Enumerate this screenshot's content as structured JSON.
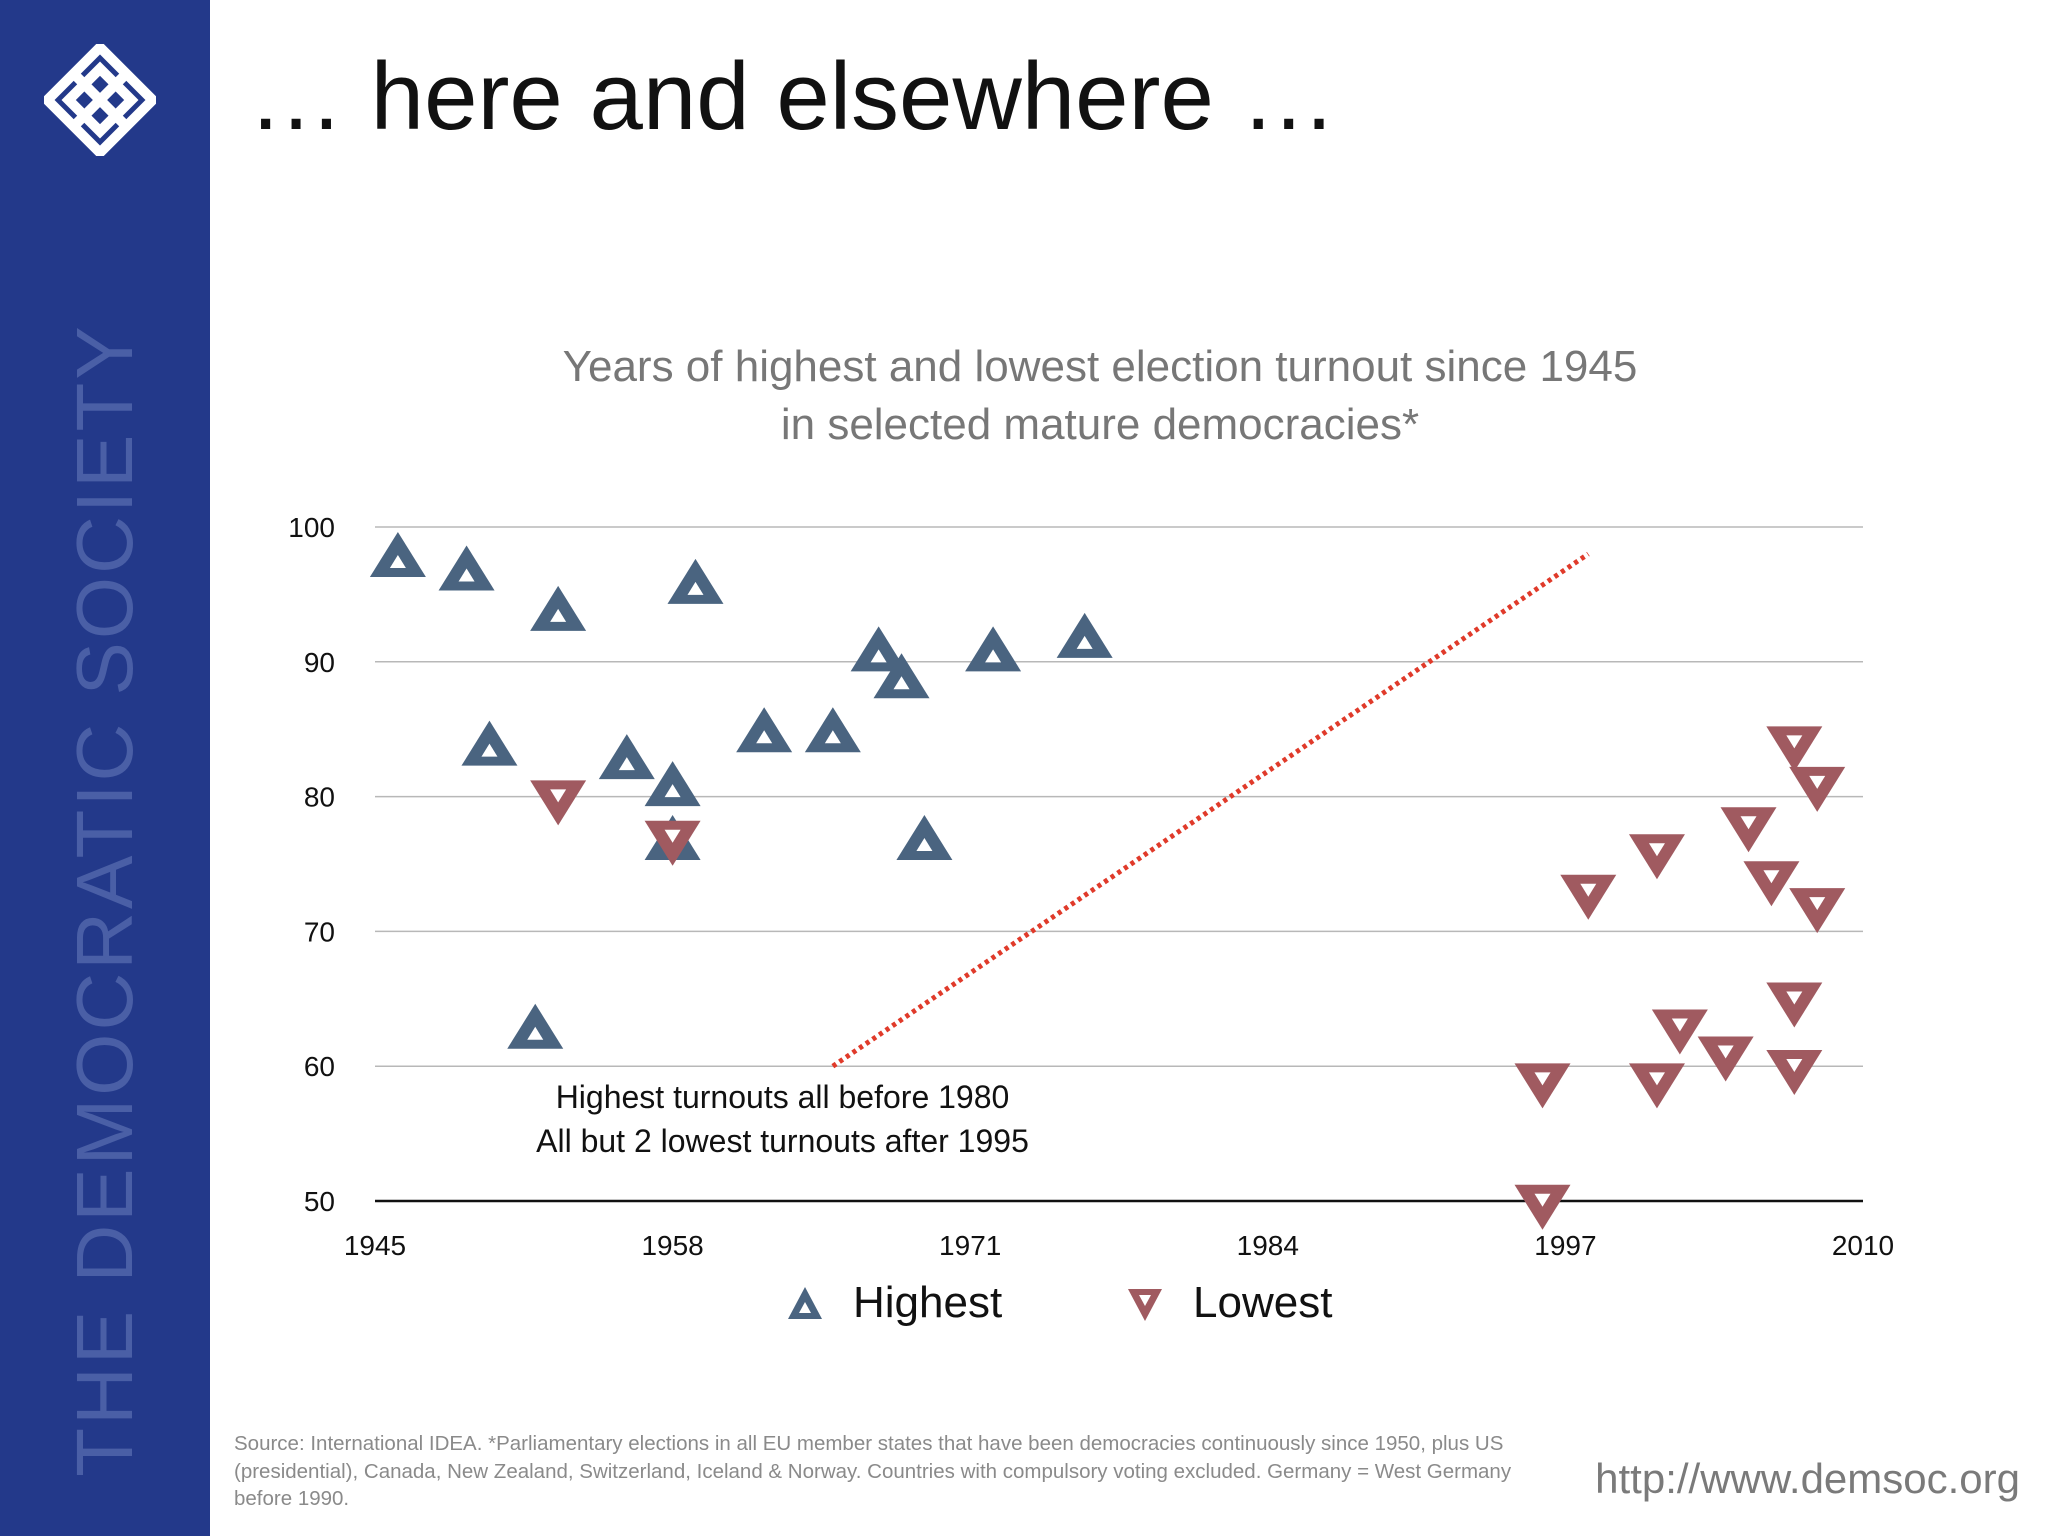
{
  "brand": {
    "name": "THE DEMOCRATIC SOCIETY",
    "sidebar_color": "#23398a"
  },
  "slide": {
    "title": "… here and elsewhere …"
  },
  "chart_data": {
    "type": "scatter",
    "title": "Years of highest and lowest election turnout since 1945",
    "subtitle": "in selected mature democracies*",
    "xlabel": "",
    "ylabel": "",
    "xlim": [
      1945,
      2010
    ],
    "ylim": [
      50,
      100
    ],
    "x_ticks": [
      1945,
      1958,
      1971,
      1984,
      1997,
      2010
    ],
    "y_ticks": [
      50,
      60,
      70,
      80,
      90,
      100
    ],
    "grid": true,
    "legend_position": "bottom",
    "series": [
      {
        "name": "Highest",
        "marker": "triangle-up",
        "color": "#4a6480",
        "points": [
          {
            "x": 1946,
            "y": 98
          },
          {
            "x": 1949,
            "y": 97
          },
          {
            "x": 1953,
            "y": 94
          },
          {
            "x": 1959,
            "y": 96
          },
          {
            "x": 1950,
            "y": 84
          },
          {
            "x": 1956,
            "y": 83
          },
          {
            "x": 1958,
            "y": 81
          },
          {
            "x": 1958,
            "y": 77
          },
          {
            "x": 1952,
            "y": 63
          },
          {
            "x": 1962,
            "y": 85
          },
          {
            "x": 1965,
            "y": 85
          },
          {
            "x": 1967,
            "y": 91
          },
          {
            "x": 1968,
            "y": 89
          },
          {
            "x": 1969,
            "y": 77
          },
          {
            "x": 1972,
            "y": 91
          },
          {
            "x": 1976,
            "y": 92
          }
        ]
      },
      {
        "name": "Lowest",
        "marker": "triangle-down",
        "color": "#a05a60",
        "points": [
          {
            "x": 1953,
            "y": 79.5
          },
          {
            "x": 1958,
            "y": 76.5
          },
          {
            "x": 1996,
            "y": 49.5
          },
          {
            "x": 1996,
            "y": 58.5
          },
          {
            "x": 1998,
            "y": 72.5
          },
          {
            "x": 2001,
            "y": 75.5
          },
          {
            "x": 2001,
            "y": 58.5
          },
          {
            "x": 2002,
            "y": 62.5
          },
          {
            "x": 2004,
            "y": 60.5
          },
          {
            "x": 2005,
            "y": 77.5
          },
          {
            "x": 2006,
            "y": 73.5
          },
          {
            "x": 2007,
            "y": 83.5
          },
          {
            "x": 2007,
            "y": 64.5
          },
          {
            "x": 2007,
            "y": 59.5
          },
          {
            "x": 2008,
            "y": 80.5
          },
          {
            "x": 2008,
            "y": 71.5
          }
        ]
      }
    ],
    "divider_line": {
      "style": "dotted",
      "color": "#e03a2a",
      "from": [
        1965,
        60
      ],
      "to": [
        1998,
        98
      ]
    },
    "annotations": [
      "Highest turnouts all before 1980",
      "All but 2 lowest turnouts after 1995"
    ]
  },
  "footer": {
    "source": "Source: International IDEA. *Parliamentary elections in all EU member states that have been democracies continuously since 1950, plus US (presidential), Canada, New Zealand, Switzerland, Iceland & Norway. Countries with compulsory voting excluded. Germany = West Germany before 1990.",
    "url": "http://www.demsoc.org"
  }
}
